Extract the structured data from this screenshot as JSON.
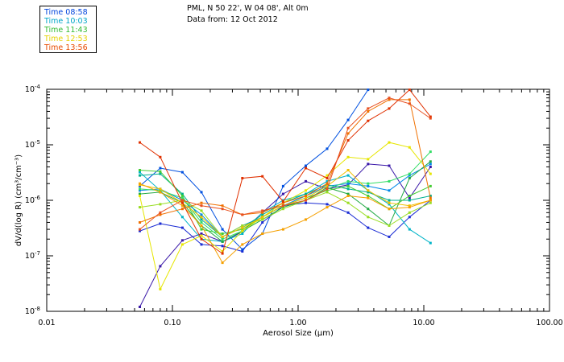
{
  "header": {
    "location": "PML, N 50 22', W 04 08', Alt 0m",
    "date_line": "Data from: 12 Oct 2012"
  },
  "legend": [
    {
      "label": "Time 08:58",
      "color": "#0044dd"
    },
    {
      "label": "Time 10:03",
      "color": "#00a6c8"
    },
    {
      "label": "Time 11:43",
      "color": "#33bb33"
    },
    {
      "label": "Time 12:53",
      "color": "#e6d200"
    },
    {
      "label": "Time 13:56",
      "color": "#e84a00"
    }
  ],
  "chart_data": {
    "type": "line",
    "xlabel": "Aerosol Size (µm)",
    "ylabel": "dV/d(log R) (cm³/cm⁻³)",
    "xscale": "log",
    "yscale": "log",
    "xlim": [
      0.01,
      100
    ],
    "ylim": [
      1e-08,
      0.0001
    ],
    "x_ticks": [
      0.01,
      0.1,
      1,
      10,
      100
    ],
    "x_tick_labels": [
      "0.01",
      "0.10",
      "1.00",
      "10.00",
      "100.00"
    ],
    "y_ticks": [
      1e-08,
      1e-07,
      1e-06,
      1e-05,
      0.0001
    ],
    "y_tick_labels": [
      {
        "mantissa": "10",
        "exponent": "-8"
      },
      {
        "mantissa": "10",
        "exponent": "-7"
      },
      {
        "mantissa": "10",
        "exponent": "-6"
      },
      {
        "mantissa": "10",
        "exponent": "-5"
      },
      {
        "mantissa": "10",
        "exponent": "-4"
      }
    ],
    "x": [
      0.055,
      0.08,
      0.12,
      0.17,
      0.25,
      0.36,
      0.52,
      0.76,
      1.15,
      1.7,
      2.5,
      3.6,
      5.3,
      7.7,
      11.3
    ],
    "series": [
      {
        "color": "#3a18a8",
        "values": [
          1.2e-08,
          6.5e-08,
          1.9e-07,
          2.5e-07,
          1.8e-07,
          2.7e-07,
          6e-07,
          1.3e-06,
          2.2e-06,
          1.6e-06,
          1.9e-06,
          4.5e-06,
          4.2e-06,
          1.1e-06,
          4e-06
        ]
      },
      {
        "color": "#1a2bd4",
        "values": [
          2.8e-07,
          3.8e-07,
          3.2e-07,
          1.6e-07,
          1.5e-07,
          1.2e-07,
          4e-07,
          8e-07,
          9e-07,
          8.5e-07,
          6e-07,
          3.2e-07,
          2.2e-07,
          5e-07,
          1e-06
        ]
      },
      {
        "color": "#0050e0",
        "values": [
          1.8e-06,
          3.8e-06,
          3.2e-06,
          1.4e-06,
          3e-07,
          1.3e-07,
          2.5e-07,
          1.8e-06,
          4.2e-06,
          8.5e-06,
          2.8e-05,
          9.8e-05,
          null,
          null,
          null
        ]
      },
      {
        "color": "#0088e8",
        "values": [
          1.5e-06,
          1.6e-06,
          1e-06,
          5.5e-07,
          2.2e-07,
          3.5e-07,
          5e-07,
          8e-07,
          1.2e-06,
          1.8e-06,
          2e-06,
          1.8e-06,
          1.5e-06,
          2.8e-06,
          4.5e-06
        ]
      },
      {
        "color": "#00b4c8",
        "values": [
          3.2e-06,
          1.5e-06,
          5e-07,
          2e-07,
          1.8e-07,
          2.5e-07,
          6e-07,
          1e-06,
          1.3e-06,
          2.2e-06,
          2.8e-06,
          1.5e-06,
          8.5e-07,
          3e-07,
          1.7e-07
        ]
      },
      {
        "color": "#00b090",
        "values": [
          2.8e-06,
          3e-06,
          1.3e-06,
          4.5e-07,
          2.2e-07,
          3.2e-07,
          5.5e-07,
          9e-07,
          1.3e-06,
          1.9e-06,
          1.6e-06,
          1.4e-06,
          1e-06,
          1e-06,
          1.2e-06
        ]
      },
      {
        "color": "#22aa44",
        "values": [
          1.3e-06,
          1.4e-06,
          9e-07,
          3.5e-07,
          1.8e-07,
          2.8e-07,
          4.5e-07,
          7.5e-07,
          1e-06,
          1.7e-06,
          1.3e-06,
          7e-07,
          3.5e-07,
          2.5e-06,
          5e-06
        ]
      },
      {
        "color": "#44cc33",
        "values": [
          3.5e-06,
          3.3e-06,
          1.2e-06,
          3e-07,
          2.5e-07,
          3e-07,
          5e-07,
          8e-07,
          1.1e-06,
          1.5e-06,
          1.8e-06,
          1.2e-06,
          7e-07,
          1.2e-06,
          1.8e-06
        ]
      },
      {
        "color": "#33dd66",
        "values": [
          1.6e-06,
          1.5e-06,
          1.1e-06,
          4e-07,
          2e-07,
          2.8e-07,
          5e-07,
          8e-07,
          1e-06,
          1.6e-06,
          2.2e-06,
          2e-06,
          2.2e-06,
          3e-06,
          7.5e-06
        ]
      },
      {
        "color": "#99dd22",
        "values": [
          7.5e-07,
          8.5e-07,
          1e-06,
          6.5e-07,
          2.2e-07,
          3.5e-07,
          4.5e-07,
          7e-07,
          1e-06,
          1.4e-06,
          9e-07,
          5e-07,
          3.5e-07,
          6e-07,
          9e-07
        ]
      },
      {
        "color": "#e6e600",
        "values": [
          1.2e-06,
          2.5e-08,
          1.6e-07,
          2.3e-07,
          1.2e-07,
          2.8e-07,
          5e-07,
          9e-07,
          1.5e-06,
          2.8e-06,
          6e-06,
          5.5e-06,
          1.1e-05,
          9e-06,
          3e-06
        ]
      },
      {
        "color": "#f0c000",
        "values": [
          1.9e-06,
          1.6e-06,
          9e-07,
          5e-07,
          2.2e-07,
          3.2e-07,
          5e-07,
          8e-07,
          1.1e-06,
          1.8e-06,
          3.5e-06,
          1.5e-06,
          9e-07,
          8e-07,
          1e-06
        ]
      },
      {
        "color": "#f5a000",
        "values": [
          2e-06,
          1.4e-06,
          8e-07,
          3.5e-07,
          7.5e-08,
          1.6e-07,
          2.5e-07,
          3e-07,
          4.5e-07,
          7.5e-07,
          1.2e-06,
          1.1e-06,
          7e-07,
          7.5e-07,
          1e-06
        ]
      },
      {
        "color": "#f07000",
        "values": [
          4e-07,
          5.5e-07,
          7e-07,
          9e-07,
          8e-07,
          5.5e-07,
          6e-07,
          9e-07,
          1.2e-06,
          2e-06,
          1.6e-05,
          4e-05,
          6.5e-05,
          6.5e-05,
          1.1e-06
        ]
      },
      {
        "color": "#e03000",
        "values": [
          1.1e-05,
          6e-06,
          9e-07,
          2e-07,
          1.1e-07,
          2.5e-06,
          2.7e-06,
          9.5e-07,
          3.8e-06,
          2.5e-06,
          1.2e-05,
          2.7e-05,
          4.5e-05,
          9.8e-05,
          3.2e-05
        ]
      },
      {
        "color": "#e85020",
        "values": [
          3e-07,
          6e-07,
          1e-06,
          8e-07,
          7e-07,
          5.5e-07,
          6.5e-07,
          8e-07,
          1e-06,
          1.6e-06,
          2e-05,
          4.5e-05,
          7e-05,
          5.5e-05,
          3e-05
        ]
      }
    ]
  }
}
